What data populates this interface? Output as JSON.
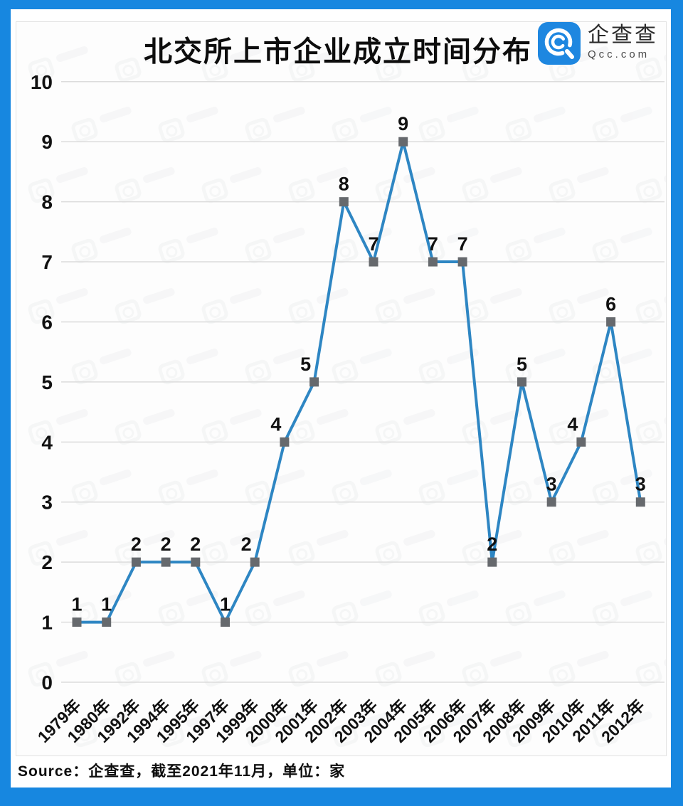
{
  "title": "北交所上市企业成立时间分布",
  "logo": {
    "name": "企查查",
    "domain": "Qcc.com",
    "brand_color": "#1e87e0"
  },
  "source_note": "Source：企查查，截至2021年11月，单位：家",
  "chart_data": {
    "type": "line",
    "title": "北交所上市企业成立时间分布",
    "categories": [
      "1979年",
      "1980年",
      "1992年",
      "1994年",
      "1995年",
      "1997年",
      "1999年",
      "2000年",
      "2001年",
      "2002年",
      "2003年",
      "2004年",
      "2005年",
      "2006年",
      "2007年",
      "2008年",
      "2009年",
      "2010年",
      "2011年",
      "2012年"
    ],
    "values": [
      1,
      1,
      2,
      2,
      2,
      1,
      2,
      4,
      5,
      8,
      7,
      9,
      7,
      7,
      2,
      5,
      3,
      4,
      6,
      3
    ],
    "xlabel": "",
    "ylabel": "",
    "unit": "家",
    "ylim": [
      0,
      10
    ],
    "yticks": [
      0,
      1,
      2,
      3,
      4,
      5,
      6,
      7,
      8,
      9,
      10
    ],
    "grid": true,
    "legend": "none",
    "data_labels": true,
    "line_color": "#2e86c3",
    "marker_color": "#66696d",
    "marker_shape": "square",
    "gridline_color": "#dcdcdc",
    "label_color": "#111111"
  }
}
